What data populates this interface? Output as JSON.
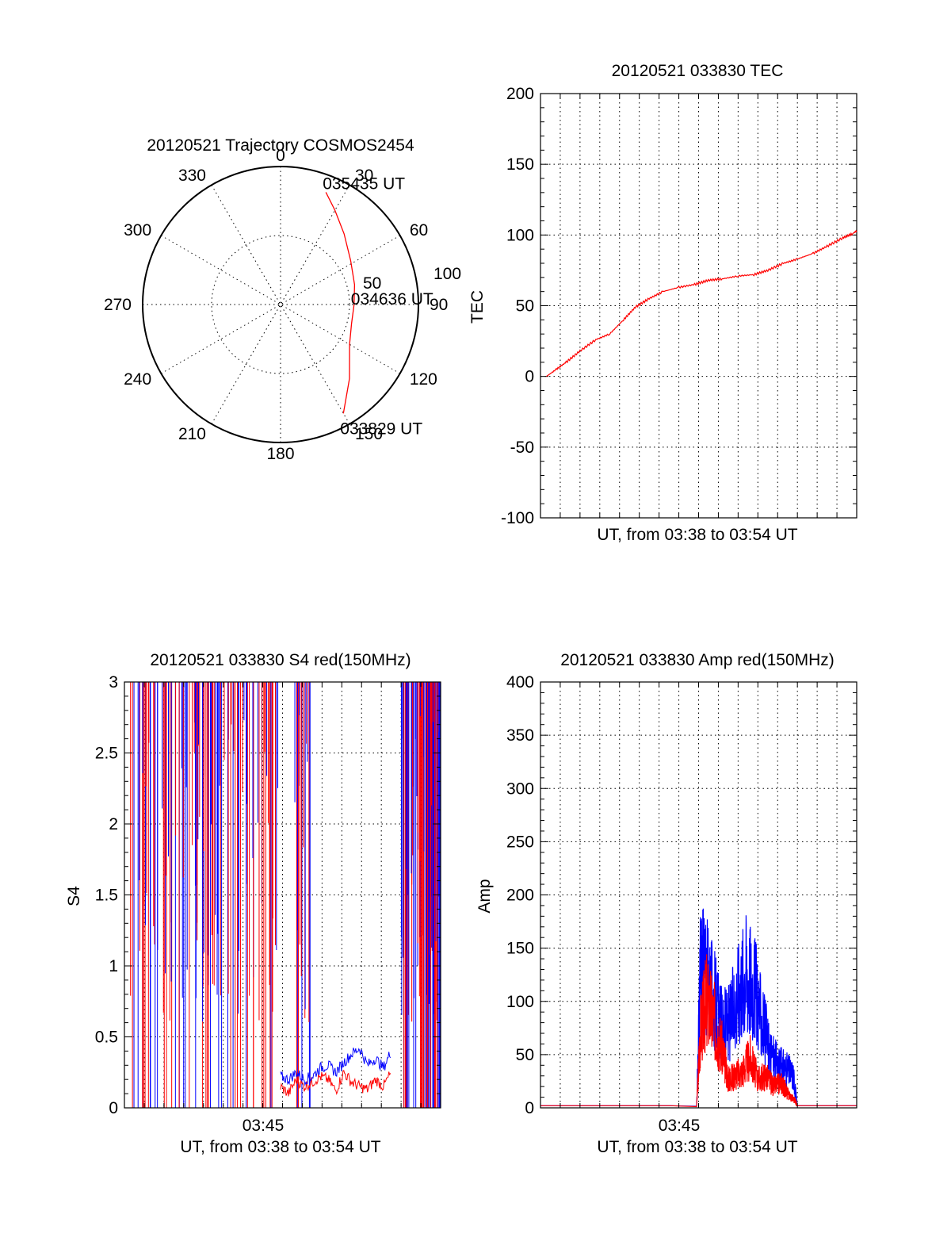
{
  "chart_data": [
    {
      "type": "polar",
      "title": "20120521 Trajectory COSMOS2454",
      "angle_labels": [
        "0",
        "30",
        "60",
        "90",
        "120",
        "150",
        "180",
        "210",
        "240",
        "270",
        "300",
        "330"
      ],
      "radial_labels": [
        "50",
        "100"
      ],
      "series": [
        {
          "color": "#ff0000",
          "points": [
            {
              "azimuth": 22,
              "elevation": 11
            },
            {
              "azimuth": 30,
              "elevation": 19
            },
            {
              "azimuth": 42,
              "elevation": 28
            },
            {
              "azimuth": 58,
              "elevation": 36
            },
            {
              "azimuth": 75,
              "elevation": 40
            },
            {
              "azimuth": 90,
              "elevation": 42
            },
            {
              "azimuth": 105,
              "elevation": 42
            },
            {
              "azimuth": 120,
              "elevation": 38
            },
            {
              "azimuth": 137,
              "elevation": 24
            },
            {
              "azimuth": 150,
              "elevation": 8
            }
          ]
        }
      ],
      "annotations": [
        {
          "text": "035435 UT",
          "azimuth": 22,
          "elevation": 11
        },
        {
          "text": "034636 UT",
          "azimuth": 90,
          "elevation": 42
        },
        {
          "text": "033829 UT",
          "azimuth": 150,
          "elevation": 8
        }
      ]
    },
    {
      "type": "line",
      "title": "20120521 033830 TEC",
      "xlabel": "UT, from 03:38 to 03:54 UT",
      "ylabel": "TEC",
      "ylim": [
        -100,
        200
      ],
      "yticks": [
        "-100",
        "-50",
        "0",
        "50",
        "100",
        "150",
        "200"
      ],
      "xlim_minutes": [
        0,
        16
      ],
      "grid": true,
      "series": [
        {
          "color": "#ff0000",
          "x": [
            0.3,
            0.8,
            1.3,
            2,
            2.8,
            3.5,
            4.2,
            4.8,
            5.5,
            6.2,
            7,
            7.8,
            8.5,
            9.2,
            10,
            10.8,
            11.5,
            12.3,
            13,
            13.8,
            14.5,
            15.3,
            15.8,
            16
          ],
          "values": [
            0,
            5,
            10,
            18,
            26,
            30,
            40,
            49,
            55,
            60,
            63,
            65,
            68,
            69,
            71,
            72,
            75,
            80,
            83,
            87,
            92,
            98,
            101,
            103
          ]
        }
      ]
    },
    {
      "type": "line",
      "title": "20120521 033830 S4 red(150MHz)",
      "xlabel": "UT, from 03:38 to 03:54 UT",
      "xtick_label": "03:45",
      "ylabel": "S4",
      "ylim": [
        0,
        3
      ],
      "yticks": [
        "0",
        "0.5",
        "1",
        "1.5",
        "2",
        "2.5",
        "3"
      ],
      "xlim_minutes": [
        0,
        16
      ],
      "grid": true,
      "series": [
        {
          "color": "#ff0000",
          "x": [
            7.9,
            8.3,
            8.7,
            9.1,
            9.5,
            9.9,
            10.3,
            10.7,
            11.1,
            11.5,
            11.9,
            12.3,
            12.7,
            13.1,
            13.5
          ],
          "values": [
            0.15,
            0.1,
            0.2,
            0.15,
            0.18,
            0.22,
            0.2,
            0.12,
            0.25,
            0.18,
            0.15,
            0.13,
            0.2,
            0.15,
            0.25
          ]
        },
        {
          "color": "#0000ff",
          "x": [
            7.9,
            8.3,
            8.7,
            9.1,
            9.5,
            9.9,
            10.3,
            10.7,
            11.1,
            11.5,
            11.9,
            12.3,
            12.7,
            13.1,
            13.5
          ],
          "values": [
            0.22,
            0.2,
            0.25,
            0.2,
            0.22,
            0.28,
            0.3,
            0.25,
            0.32,
            0.38,
            0.42,
            0.3,
            0.35,
            0.28,
            0.4
          ]
        }
      ]
    },
    {
      "type": "line",
      "title": "20120521 033830 Amp red(150MHz)",
      "xlabel": "UT, from 03:38 to 03:54 UT",
      "xtick_label": "03:45",
      "ylabel": "Amp",
      "ylim": [
        0,
        400
      ],
      "yticks": [
        "0",
        "50",
        "100",
        "150",
        "200",
        "250",
        "300",
        "350",
        "400"
      ],
      "xlim_minutes": [
        0,
        16
      ],
      "grid": true,
      "series": [
        {
          "color": "#ff0000",
          "x": [
            0,
            7.9,
            8.1,
            8.4,
            8.8,
            9.2,
            9.5,
            9.8,
            10.2,
            10.6,
            11,
            11.4,
            11.8,
            12.2,
            12.5,
            12.9,
            13,
            16
          ],
          "values": [
            2,
            2,
            110,
            150,
            120,
            80,
            40,
            45,
            50,
            70,
            40,
            45,
            30,
            35,
            20,
            10,
            2,
            2
          ]
        },
        {
          "color": "#0000ff",
          "x": [
            0,
            7.9,
            8.1,
            8.4,
            8.8,
            9.2,
            9.6,
            10,
            10.4,
            10.8,
            11.2,
            11.6,
            12,
            12.4,
            12.8,
            13,
            16
          ],
          "values": [
            2,
            2,
            200,
            180,
            150,
            110,
            120,
            160,
            190,
            170,
            120,
            80,
            60,
            55,
            45,
            2,
            2
          ]
        }
      ]
    }
  ]
}
